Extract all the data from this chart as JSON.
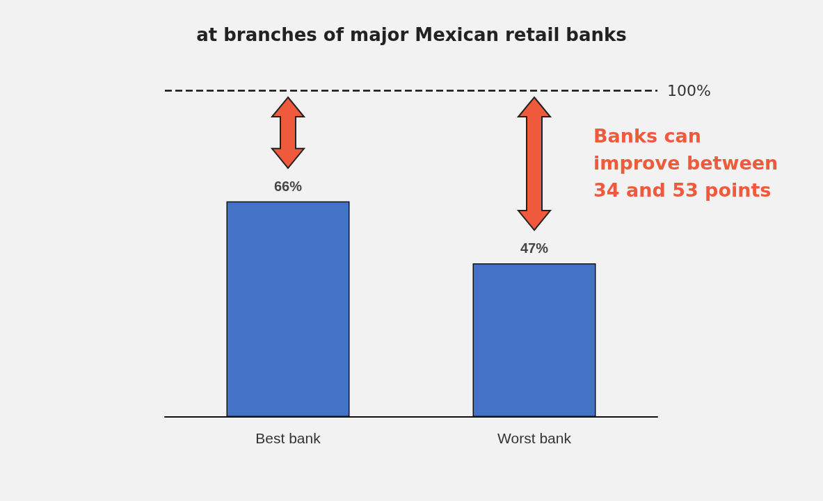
{
  "chart_data": {
    "type": "bar",
    "title": "at branches of major Mexican retail banks",
    "categories": [
      "Best bank",
      "Worst bank"
    ],
    "values": [
      66,
      47
    ],
    "value_labels": [
      "66%",
      "47%"
    ],
    "color": "#4472c6",
    "ylim": [
      0,
      100
    ],
    "ref_lines": [
      {
        "axis": "y",
        "value": 100,
        "label": "100%",
        "line_style": "dashed",
        "color": "#111111"
      }
    ],
    "annotations": [
      "Banks can improve between 34 and 53 points"
    ]
  }
}
